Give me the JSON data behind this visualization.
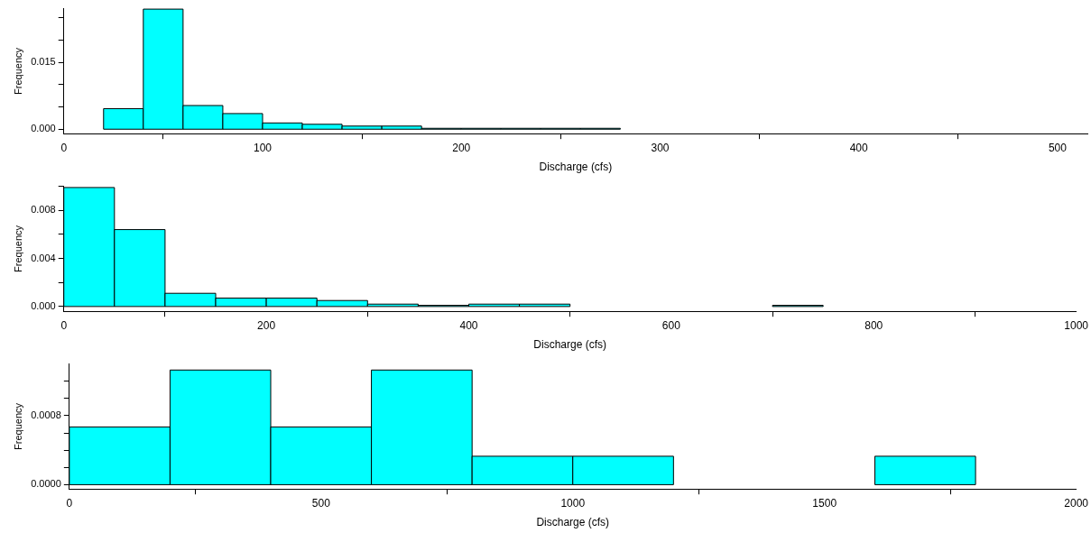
{
  "chart_data": [
    {
      "type": "histogram",
      "xlabel": "Discharge (cfs)",
      "ylabel": "Frequency",
      "color": "#00ffff",
      "bins": [
        20,
        40,
        60,
        80,
        100,
        120,
        140,
        160,
        180,
        200,
        220,
        240,
        260,
        280
      ],
      "values": [
        0.0046,
        0.0269,
        0.0053,
        0.0035,
        0.0014,
        0.0011,
        0.0007,
        0.0007,
        0.0002,
        0.0002,
        0.0002,
        0.0002,
        0.0002
      ],
      "xlim": [
        0,
        515
      ],
      "xticks": [
        0,
        100,
        200,
        300,
        400,
        500
      ],
      "ylim": [
        -0.001,
        0.027
      ],
      "yticks": [
        {
          "value": 0,
          "label": "0.000"
        },
        {
          "value": 0.005,
          "label": null
        },
        {
          "value": 0.01,
          "label": null
        },
        0.015,
        {
          "value": 0.02,
          "label": null
        },
        {
          "value": 0.025,
          "label": null
        }
      ],
      "grid": false,
      "legend": false
    },
    {
      "type": "histogram",
      "xlabel": "Discharge (cfs)",
      "ylabel": "Frequency",
      "color": "#00ffff",
      "bins": [
        0,
        50,
        100,
        150,
        200,
        250,
        300,
        350,
        400,
        450,
        500,
        700,
        750
      ],
      "values": [
        0.0099,
        0.0064,
        0.0011,
        0.0007,
        0.0007,
        0.0005,
        0.0002,
        0.0001,
        0.0002,
        0.0002,
        0,
        0.0001
      ],
      "xlim": [
        0,
        1000
      ],
      "xticks": [
        0,
        200,
        400,
        600,
        800,
        1000
      ],
      "ylim": [
        -0.0004,
        0.01
      ],
      "yticks": [
        {
          "value": 0,
          "label": "0.000"
        },
        {
          "value": 0.002,
          "label": null
        },
        0.004,
        {
          "value": 0.006,
          "label": null
        },
        0.008,
        {
          "value": 0.01,
          "label": null
        }
      ],
      "grid": false,
      "legend": false
    },
    {
      "type": "histogram",
      "xlabel": "Discharge (cfs)",
      "ylabel": "Frequency",
      "color": "#00ffff",
      "bins": [
        0,
        200,
        400,
        600,
        800,
        1000,
        1200,
        1600,
        1800
      ],
      "values": [
        0.00067,
        0.00133,
        0.00067,
        0.00133,
        0.00033,
        0.00033,
        0,
        0.00033
      ],
      "xlim": [
        0,
        2000
      ],
      "xticks": [
        0,
        500,
        1000,
        1500,
        2000
      ],
      "ylim": [
        -5e-05,
        0.0014
      ],
      "yticks": [
        {
          "value": 0,
          "label": "0.0000"
        },
        {
          "value": 0.0002,
          "label": null
        },
        {
          "value": 0.0004,
          "label": null
        },
        {
          "value": 0.0006,
          "label": null
        },
        0.0008,
        {
          "value": 0.001,
          "label": null
        },
        {
          "value": 0.0012,
          "label": null
        }
      ],
      "grid": false,
      "legend": false
    }
  ]
}
